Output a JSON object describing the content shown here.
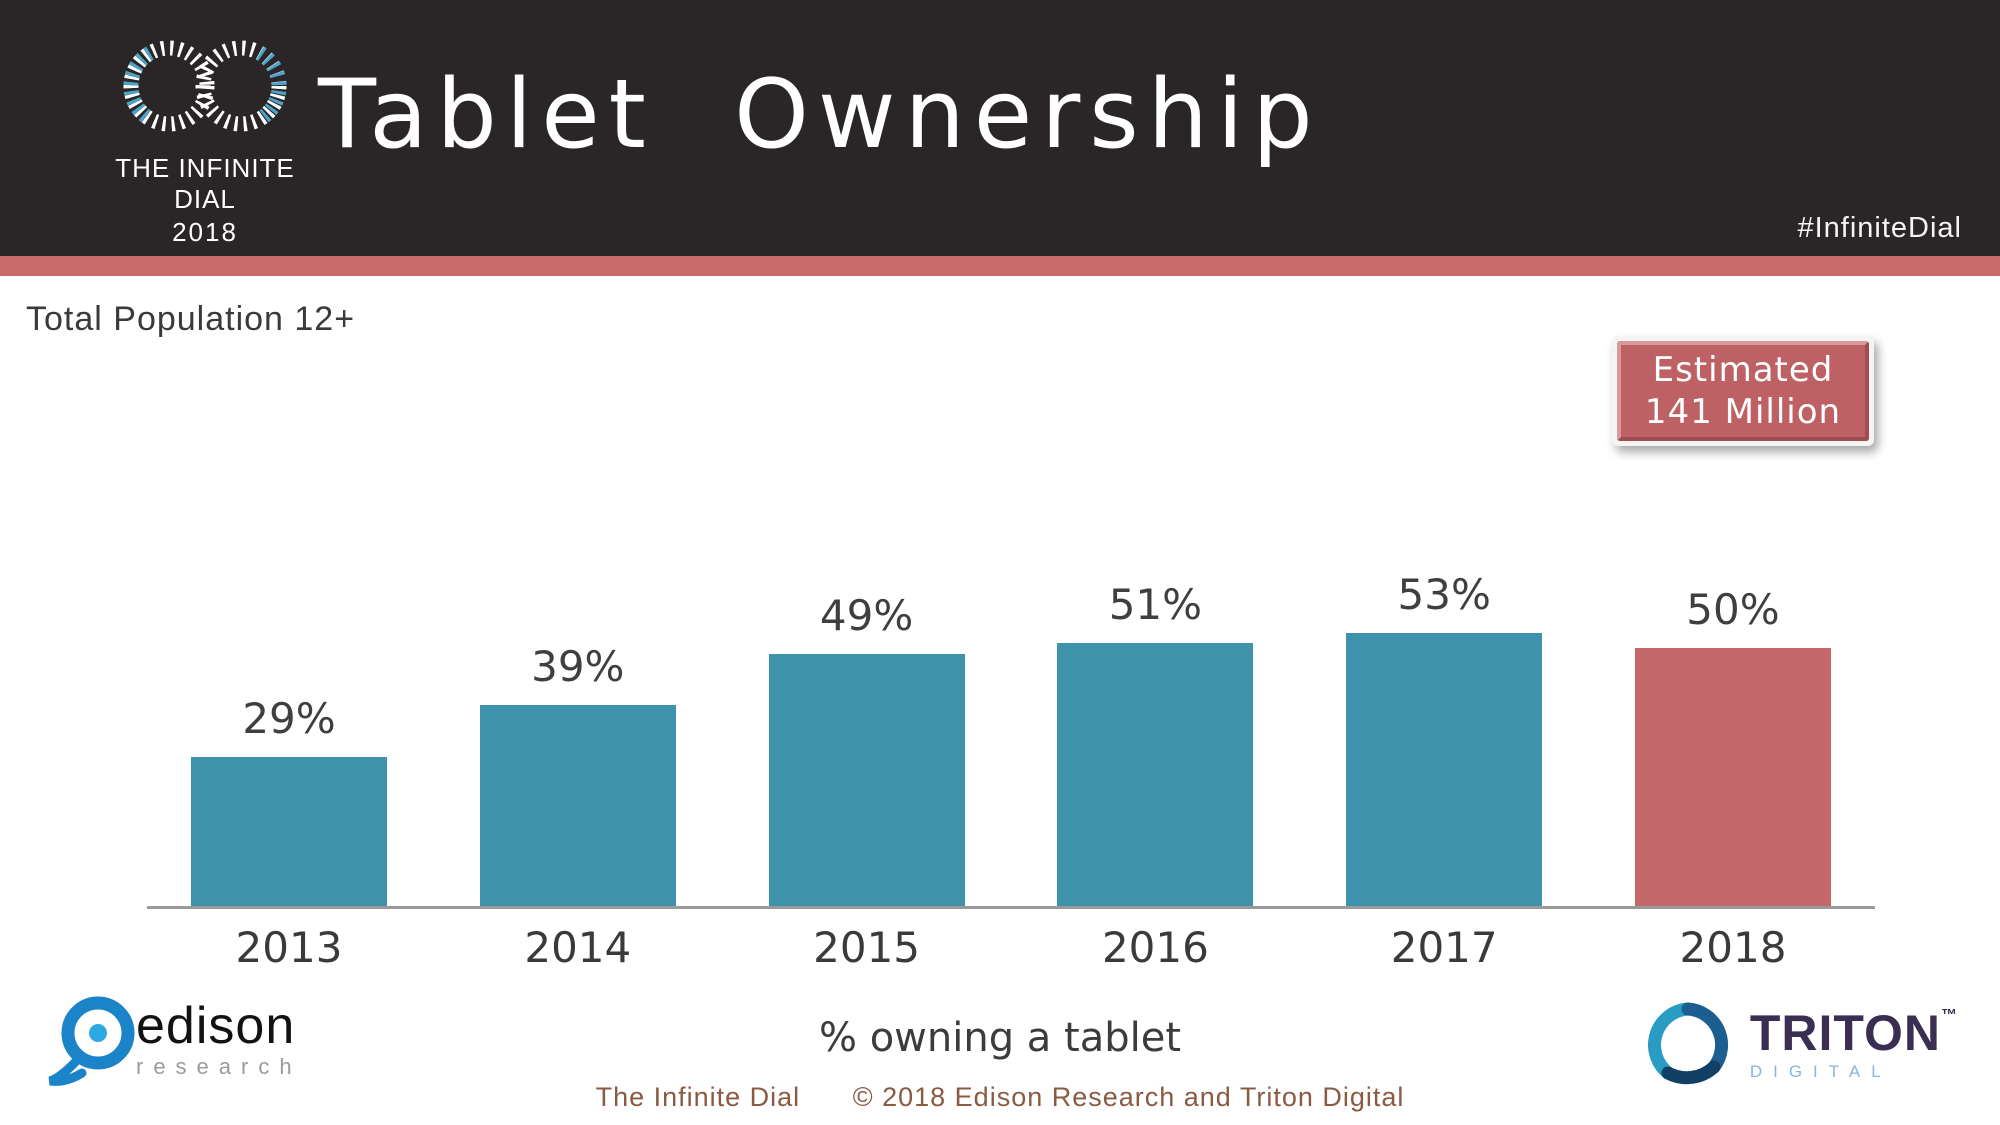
{
  "header": {
    "logo": {
      "line1": "THE INFINITE DIAL",
      "line2": "2018"
    },
    "title": "Tablet Ownership",
    "hashtag": "#InfiniteDial"
  },
  "subtitle": "Total Population 12+",
  "badge": {
    "line1": "Estimated",
    "line2": "141 Million"
  },
  "chart_data": {
    "type": "bar",
    "title": "Tablet Ownership",
    "categories": [
      "2013",
      "2014",
      "2015",
      "2016",
      "2017",
      "2018"
    ],
    "values": [
      29,
      39,
      49,
      51,
      53,
      50
    ],
    "labels": [
      "29%",
      "39%",
      "49%",
      "51%",
      "53%",
      "50%"
    ],
    "bar_colors": [
      "#3e92ab",
      "#3e92ab",
      "#3e92ab",
      "#3e92ab",
      "#3e92ab",
      "#c4686c"
    ],
    "xlabel": "% owning a tablet",
    "ylabel": "",
    "ylim": [
      0,
      60
    ],
    "grid": false,
    "legend": false,
    "annotation": "Estimated 141 Million"
  },
  "caption": "% owning a tablet",
  "footer": {
    "left": "The Infinite Dial",
    "right": "© 2018 Edison Research and Triton Digital"
  },
  "logos": {
    "edison": {
      "name": "edison",
      "sub": "research"
    },
    "triton": {
      "name": "TRITON",
      "tm": "™",
      "sub": "DIGITAL"
    }
  },
  "colors": {
    "header_bg": "#2a2526",
    "accent_red": "#c9696c",
    "bar_teal": "#3e92ab",
    "bar_red": "#c4686c"
  }
}
